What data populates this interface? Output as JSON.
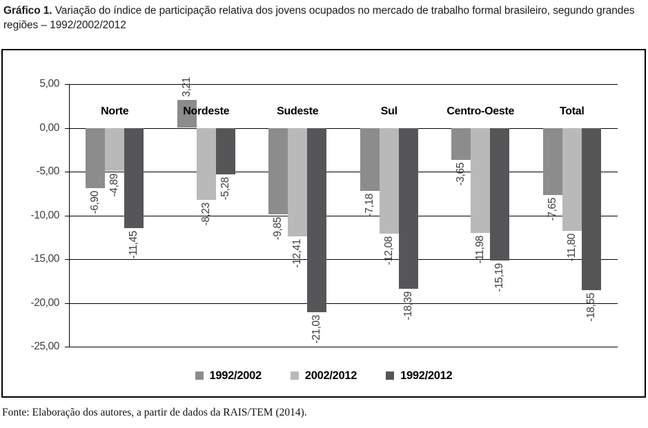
{
  "title": {
    "prefix": "Gráfico 1.",
    "rest": "Variação do índice de participação relativa dos jovens ocupados no mercado de trabalho formal brasileiro, segundo grandes regiões – 1992/2002/2012"
  },
  "source": "Fonte: Elaboração dos autores, a partir de dados da RAIS/TEM (2014).",
  "colors": {
    "series_1": "#8c8c8c",
    "series_2": "#b9b9b9",
    "series_3": "#565658",
    "grid": "#000000",
    "value_text": "#3e3e3e"
  },
  "chart_data": {
    "type": "bar",
    "categories": [
      "Norte",
      "Nordeste",
      "Sudeste",
      "Sul",
      "Centro-Oeste",
      "Total"
    ],
    "series": [
      {
        "name": "1992/2002",
        "color": "#8c8c8c",
        "values": [
          -6.9,
          3.21,
          -9.85,
          -7.18,
          -3.65,
          -7.65
        ]
      },
      {
        "name": "2002/2012",
        "color": "#b9b9b9",
        "values": [
          -4.89,
          -8.23,
          -12.41,
          -12.08,
          -11.98,
          -11.8
        ]
      },
      {
        "name": "1992/2012",
        "color": "#565658",
        "values": [
          -11.45,
          -5.28,
          -21.03,
          -18.39,
          -15.19,
          -18.55
        ]
      }
    ],
    "ylim": [
      -25,
      5
    ],
    "ytick_step": 5,
    "ytick_labels": [
      "5,00",
      "0,00",
      "-5,00",
      "-10,00",
      "-15,00",
      "-20,00",
      "-25,00"
    ],
    "decimal_separator": ",",
    "value_label_decimals": 2,
    "grid": true,
    "legend_position": "bottom"
  }
}
